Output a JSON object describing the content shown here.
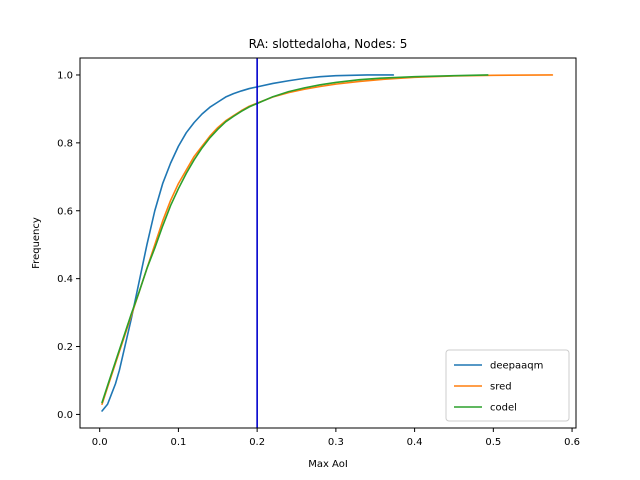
{
  "chart_data": {
    "type": "line",
    "title": "RA: slottedaloha, Nodes: 5",
    "xlabel": "Max AoI",
    "ylabel": "Frequency",
    "xlim": [
      -0.025,
      0.605
    ],
    "ylim": [
      -0.04,
      1.05
    ],
    "xticks": [
      0.0,
      0.1,
      0.2,
      0.3,
      0.4,
      0.5,
      0.6
    ],
    "xtick_labels": [
      "0.0",
      "0.1",
      "0.2",
      "0.3",
      "0.4",
      "0.5",
      "0.6"
    ],
    "yticks": [
      0.0,
      0.2,
      0.4,
      0.6,
      0.8,
      1.0
    ],
    "ytick_labels": [
      "0.0",
      "0.2",
      "0.4",
      "0.6",
      "0.8",
      "1.0"
    ],
    "grid": false,
    "legend_position": "lower-right",
    "vline": {
      "x": 0.2,
      "color": "#0000cc"
    },
    "series": [
      {
        "name": "deepaaqm",
        "color": "#1f77b4",
        "x": [
          0.003,
          0.01,
          0.015,
          0.02,
          0.025,
          0.03,
          0.04,
          0.05,
          0.06,
          0.07,
          0.08,
          0.09,
          0.1,
          0.11,
          0.12,
          0.13,
          0.14,
          0.15,
          0.16,
          0.17,
          0.18,
          0.19,
          0.2,
          0.22,
          0.24,
          0.26,
          0.28,
          0.3,
          0.32,
          0.34,
          0.373
        ],
        "y": [
          0.01,
          0.03,
          0.06,
          0.09,
          0.13,
          0.18,
          0.28,
          0.39,
          0.5,
          0.6,
          0.68,
          0.74,
          0.79,
          0.83,
          0.86,
          0.885,
          0.905,
          0.92,
          0.935,
          0.945,
          0.953,
          0.96,
          0.965,
          0.975,
          0.983,
          0.99,
          0.995,
          0.998,
          0.999,
          1.0,
          1.0
        ]
      },
      {
        "name": "sred",
        "color": "#ff7f0e",
        "x": [
          0.003,
          0.01,
          0.02,
          0.03,
          0.04,
          0.05,
          0.06,
          0.07,
          0.08,
          0.09,
          0.1,
          0.11,
          0.12,
          0.13,
          0.14,
          0.15,
          0.16,
          0.17,
          0.18,
          0.19,
          0.2,
          0.22,
          0.24,
          0.26,
          0.28,
          0.3,
          0.33,
          0.36,
          0.4,
          0.45,
          0.5,
          0.575
        ],
        "y": [
          0.03,
          0.08,
          0.15,
          0.22,
          0.29,
          0.36,
          0.43,
          0.5,
          0.57,
          0.63,
          0.68,
          0.72,
          0.76,
          0.79,
          0.82,
          0.845,
          0.865,
          0.88,
          0.895,
          0.908,
          0.917,
          0.935,
          0.948,
          0.958,
          0.966,
          0.973,
          0.981,
          0.987,
          0.993,
          0.997,
          0.999,
          1.0
        ]
      },
      {
        "name": "codel",
        "color": "#2ca02c",
        "x": [
          0.003,
          0.01,
          0.02,
          0.03,
          0.04,
          0.05,
          0.06,
          0.07,
          0.08,
          0.09,
          0.1,
          0.11,
          0.12,
          0.13,
          0.14,
          0.15,
          0.16,
          0.17,
          0.18,
          0.19,
          0.2,
          0.22,
          0.24,
          0.26,
          0.28,
          0.3,
          0.33,
          0.36,
          0.4,
          0.45,
          0.493
        ],
        "y": [
          0.035,
          0.085,
          0.155,
          0.225,
          0.295,
          0.36,
          0.43,
          0.49,
          0.555,
          0.615,
          0.665,
          0.71,
          0.75,
          0.785,
          0.815,
          0.84,
          0.862,
          0.878,
          0.893,
          0.906,
          0.916,
          0.936,
          0.951,
          0.962,
          0.971,
          0.978,
          0.986,
          0.991,
          0.995,
          0.998,
          1.0
        ]
      }
    ]
  }
}
